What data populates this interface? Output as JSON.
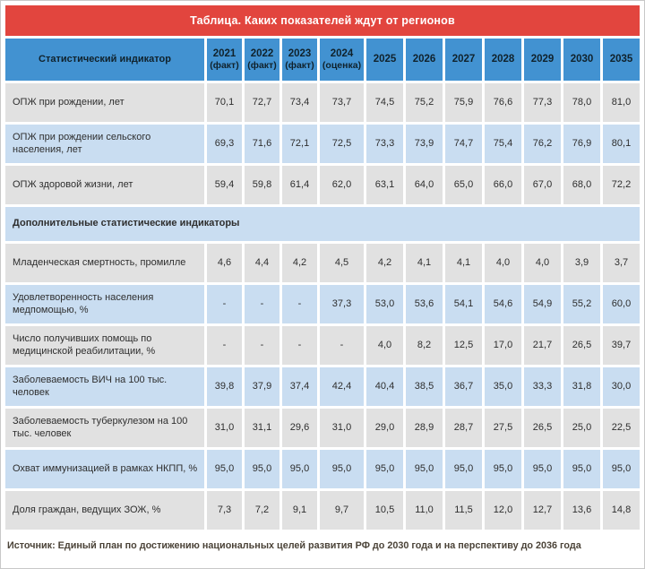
{
  "colors": {
    "title_bar_bg": "#e2453e",
    "header_bg": "#4292d1",
    "row_gray": "#e1e1e1",
    "row_blue": "#c9ddf1",
    "header_text": "#10222c",
    "body_text": "#2e2e2e",
    "source_text": "#4b4338"
  },
  "chart_data": {
    "type": "table",
    "title": "Таблица. Каких показателей ждут от регионов",
    "indicator_column_header": "Статистический индикатор",
    "year_columns": [
      {
        "label": "2021",
        "note": "(факт)"
      },
      {
        "label": "2022",
        "note": "(факт)"
      },
      {
        "label": "2023",
        "note": "(факт)"
      },
      {
        "label": "2024",
        "note": "(оценка)"
      },
      {
        "label": "2025",
        "note": ""
      },
      {
        "label": "2026",
        "note": ""
      },
      {
        "label": "2027",
        "note": ""
      },
      {
        "label": "2028",
        "note": ""
      },
      {
        "label": "2029",
        "note": ""
      },
      {
        "label": "2030",
        "note": ""
      },
      {
        "label": "2035",
        "note": ""
      }
    ],
    "rows": [
      {
        "kind": "data",
        "label": "ОПЖ при рождении, лет",
        "values": [
          "70,1",
          "72,7",
          "73,4",
          "73,7",
          "74,5",
          "75,2",
          "75,9",
          "76,6",
          "77,3",
          "78,0",
          "81,0"
        ]
      },
      {
        "kind": "data",
        "label": "ОПЖ при рождении сельского населения, лет",
        "values": [
          "69,3",
          "71,6",
          "72,1",
          "72,5",
          "73,3",
          "73,9",
          "74,7",
          "75,4",
          "76,2",
          "76,9",
          "80,1"
        ]
      },
      {
        "kind": "data",
        "label": "ОПЖ здоровой жизни, лет",
        "values": [
          "59,4",
          "59,8",
          "61,4",
          "62,0",
          "63,1",
          "64,0",
          "65,0",
          "66,0",
          "67,0",
          "68,0",
          "72,2"
        ]
      },
      {
        "kind": "section",
        "label": "Дополнительные статистические индикаторы"
      },
      {
        "kind": "data",
        "label": "Младенческая смертность, промилле",
        "values": [
          "4,6",
          "4,4",
          "4,2",
          "4,5",
          "4,2",
          "4,1",
          "4,1",
          "4,0",
          "4,0",
          "3,9",
          "3,7"
        ]
      },
      {
        "kind": "data",
        "label": "Удовлетворенность населения медпомощью, %",
        "values": [
          "-",
          "-",
          "-",
          "37,3",
          "53,0",
          "53,6",
          "54,1",
          "54,6",
          "54,9",
          "55,2",
          "60,0"
        ]
      },
      {
        "kind": "data",
        "label": "Число получивших помощь по медицинской реабилитации, %",
        "values": [
          "-",
          "-",
          "-",
          "-",
          "4,0",
          "8,2",
          "12,5",
          "17,0",
          "21,7",
          "26,5",
          "39,7"
        ]
      },
      {
        "kind": "data",
        "label": "Заболеваемость ВИЧ на 100 тыс. человек",
        "values": [
          "39,8",
          "37,9",
          "37,4",
          "42,4",
          "40,4",
          "38,5",
          "36,7",
          "35,0",
          "33,3",
          "31,8",
          "30,0"
        ]
      },
      {
        "kind": "data",
        "label": "Заболеваемость туберкулезом на 100 тыс. человек",
        "values": [
          "31,0",
          "31,1",
          "29,6",
          "31,0",
          "29,0",
          "28,9",
          "28,7",
          "27,5",
          "26,5",
          "25,0",
          "22,5"
        ]
      },
      {
        "kind": "data",
        "label": "Охват иммунизацией в рамках НКПП, %",
        "values": [
          "95,0",
          "95,0",
          "95,0",
          "95,0",
          "95,0",
          "95,0",
          "95,0",
          "95,0",
          "95,0",
          "95,0",
          "95,0"
        ]
      },
      {
        "kind": "data",
        "label": "Доля граждан, ведущих ЗОЖ, %",
        "values": [
          "7,3",
          "7,2",
          "9,1",
          "9,7",
          "10,5",
          "11,0",
          "11,5",
          "12,0",
          "12,7",
          "13,6",
          "14,8"
        ]
      }
    ],
    "source": "Источник: Единый план по достижению национальных целей развития РФ до 2030 года и на перспективу до 2036 года"
  }
}
